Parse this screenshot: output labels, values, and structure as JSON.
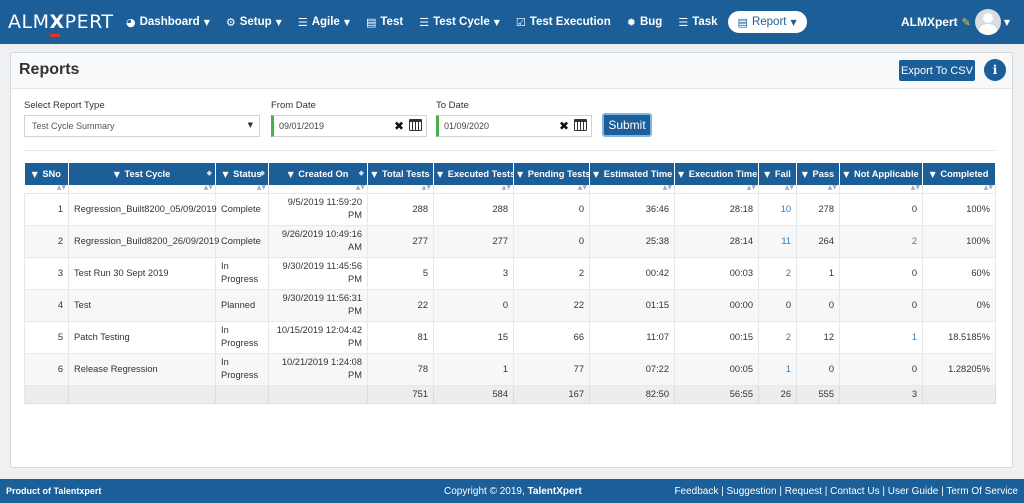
{
  "brand": {
    "prefix": "ALM",
    "x": "X",
    "suffix": "PERT"
  },
  "nav": [
    {
      "label": "Dashboard",
      "icon": "dashboard-icon",
      "glyph": "◕",
      "caret": true
    },
    {
      "label": "Setup",
      "icon": "cogs-icon",
      "glyph": "⚙",
      "caret": true
    },
    {
      "label": "Agile",
      "icon": "list-icon",
      "glyph": "☰",
      "caret": true
    },
    {
      "label": "Test",
      "icon": "file-icon",
      "glyph": "▤",
      "caret": false
    },
    {
      "label": "Test Cycle",
      "icon": "grid-icon",
      "glyph": "☰",
      "caret": true
    },
    {
      "label": "Test Execution",
      "icon": "checkbox-icon",
      "glyph": "☑",
      "caret": false
    },
    {
      "label": "Bug",
      "icon": "bug-icon",
      "glyph": "✹",
      "caret": false
    },
    {
      "label": "Task",
      "icon": "tasks-icon",
      "glyph": "☰",
      "caret": false
    }
  ],
  "nav_active": {
    "label": "Report",
    "icon": "report-icon",
    "glyph": "▤"
  },
  "user": {
    "name": "ALMXpert"
  },
  "page": {
    "title": "Reports",
    "export_label": "Export To CSV",
    "info_glyph": "i"
  },
  "filters": {
    "report_type_label": "Select Report Type",
    "report_type_value": "Test Cycle Summary",
    "from_label": "From Date",
    "from_value": "09/01/2019",
    "to_label": "To Date",
    "to_value": "01/09/2020",
    "submit_label": "Submit"
  },
  "table": {
    "columns": [
      "SNo",
      "Test Cycle",
      "Status",
      "Created On",
      "Total Tests",
      "Executed Tests",
      "Pending Tests",
      "Estimated Time",
      "Execution Time",
      "Fail",
      "Pass",
      "Not Applicable",
      "Completed"
    ],
    "rows": [
      {
        "sno": "1",
        "cycle": "Regression_Built8200_05/09/2019",
        "status": [
          "Complete"
        ],
        "created": [
          "9/5/2019 11:59:20",
          "PM"
        ],
        "total": "288",
        "executed": "288",
        "pending": "0",
        "est": "36:46",
        "exec": "28:18",
        "fail": "10",
        "pass": "278",
        "na": "0",
        "completed": "100%"
      },
      {
        "sno": "2",
        "cycle": "Regression_Build8200_26/09/2019",
        "status": [
          "Complete"
        ],
        "created": [
          "9/26/2019 10:49:16",
          "AM"
        ],
        "total": "277",
        "executed": "277",
        "pending": "0",
        "est": "25:38",
        "exec": "28:14",
        "fail": "11",
        "pass": "264",
        "na": "2",
        "completed": "100%"
      },
      {
        "sno": "3",
        "cycle": "Test Run 30 Sept 2019",
        "status": [
          "In",
          "Progress"
        ],
        "created": [
          "9/30/2019 11:45:56",
          "PM"
        ],
        "total": "5",
        "executed": "3",
        "pending": "2",
        "est": "00:42",
        "exec": "00:03",
        "fail": "2",
        "pass": "1",
        "na": "0",
        "completed": "60%"
      },
      {
        "sno": "4",
        "cycle": "Test",
        "status": [
          "Planned"
        ],
        "created": [
          "9/30/2019 11:56:31",
          "PM"
        ],
        "total": "22",
        "executed": "0",
        "pending": "22",
        "est": "01:15",
        "exec": "00:00",
        "fail": "0",
        "pass": "0",
        "na": "0",
        "completed": "0%"
      },
      {
        "sno": "5",
        "cycle": "Patch Testing",
        "status": [
          "In",
          "Progress"
        ],
        "created": [
          "10/15/2019 12:04:42",
          "PM"
        ],
        "total": "81",
        "executed": "15",
        "pending": "66",
        "est": "11:07",
        "exec": "00:15",
        "fail": "2",
        "pass": "12",
        "na": "1",
        "completed": "18.5185%"
      },
      {
        "sno": "6",
        "cycle": "Release Regression",
        "status": [
          "In",
          "Progress"
        ],
        "created": [
          "10/21/2019 1:24:08",
          "PM"
        ],
        "total": "78",
        "executed": "1",
        "pending": "77",
        "est": "07:22",
        "exec": "00:05",
        "fail": "1",
        "pass": "0",
        "na": "0",
        "completed": "1.28205%"
      }
    ],
    "totals": {
      "total": "751",
      "executed": "584",
      "pending": "167",
      "est": "82:50",
      "exec": "56:55",
      "fail": "26",
      "pass": "555",
      "na": "3"
    }
  },
  "footer": {
    "left": "Product of Talentxpert",
    "copyright": "Copyright © 2019, ",
    "company": "TalentXpert",
    "links": [
      "Feedback",
      "Suggestion",
      "Request",
      "Contact Us",
      "User Guide",
      "Term Of Service"
    ]
  },
  "colors": {
    "primary": "#1b5e98",
    "link": "#2a7fc9",
    "date_accent": "#4cae4c"
  }
}
